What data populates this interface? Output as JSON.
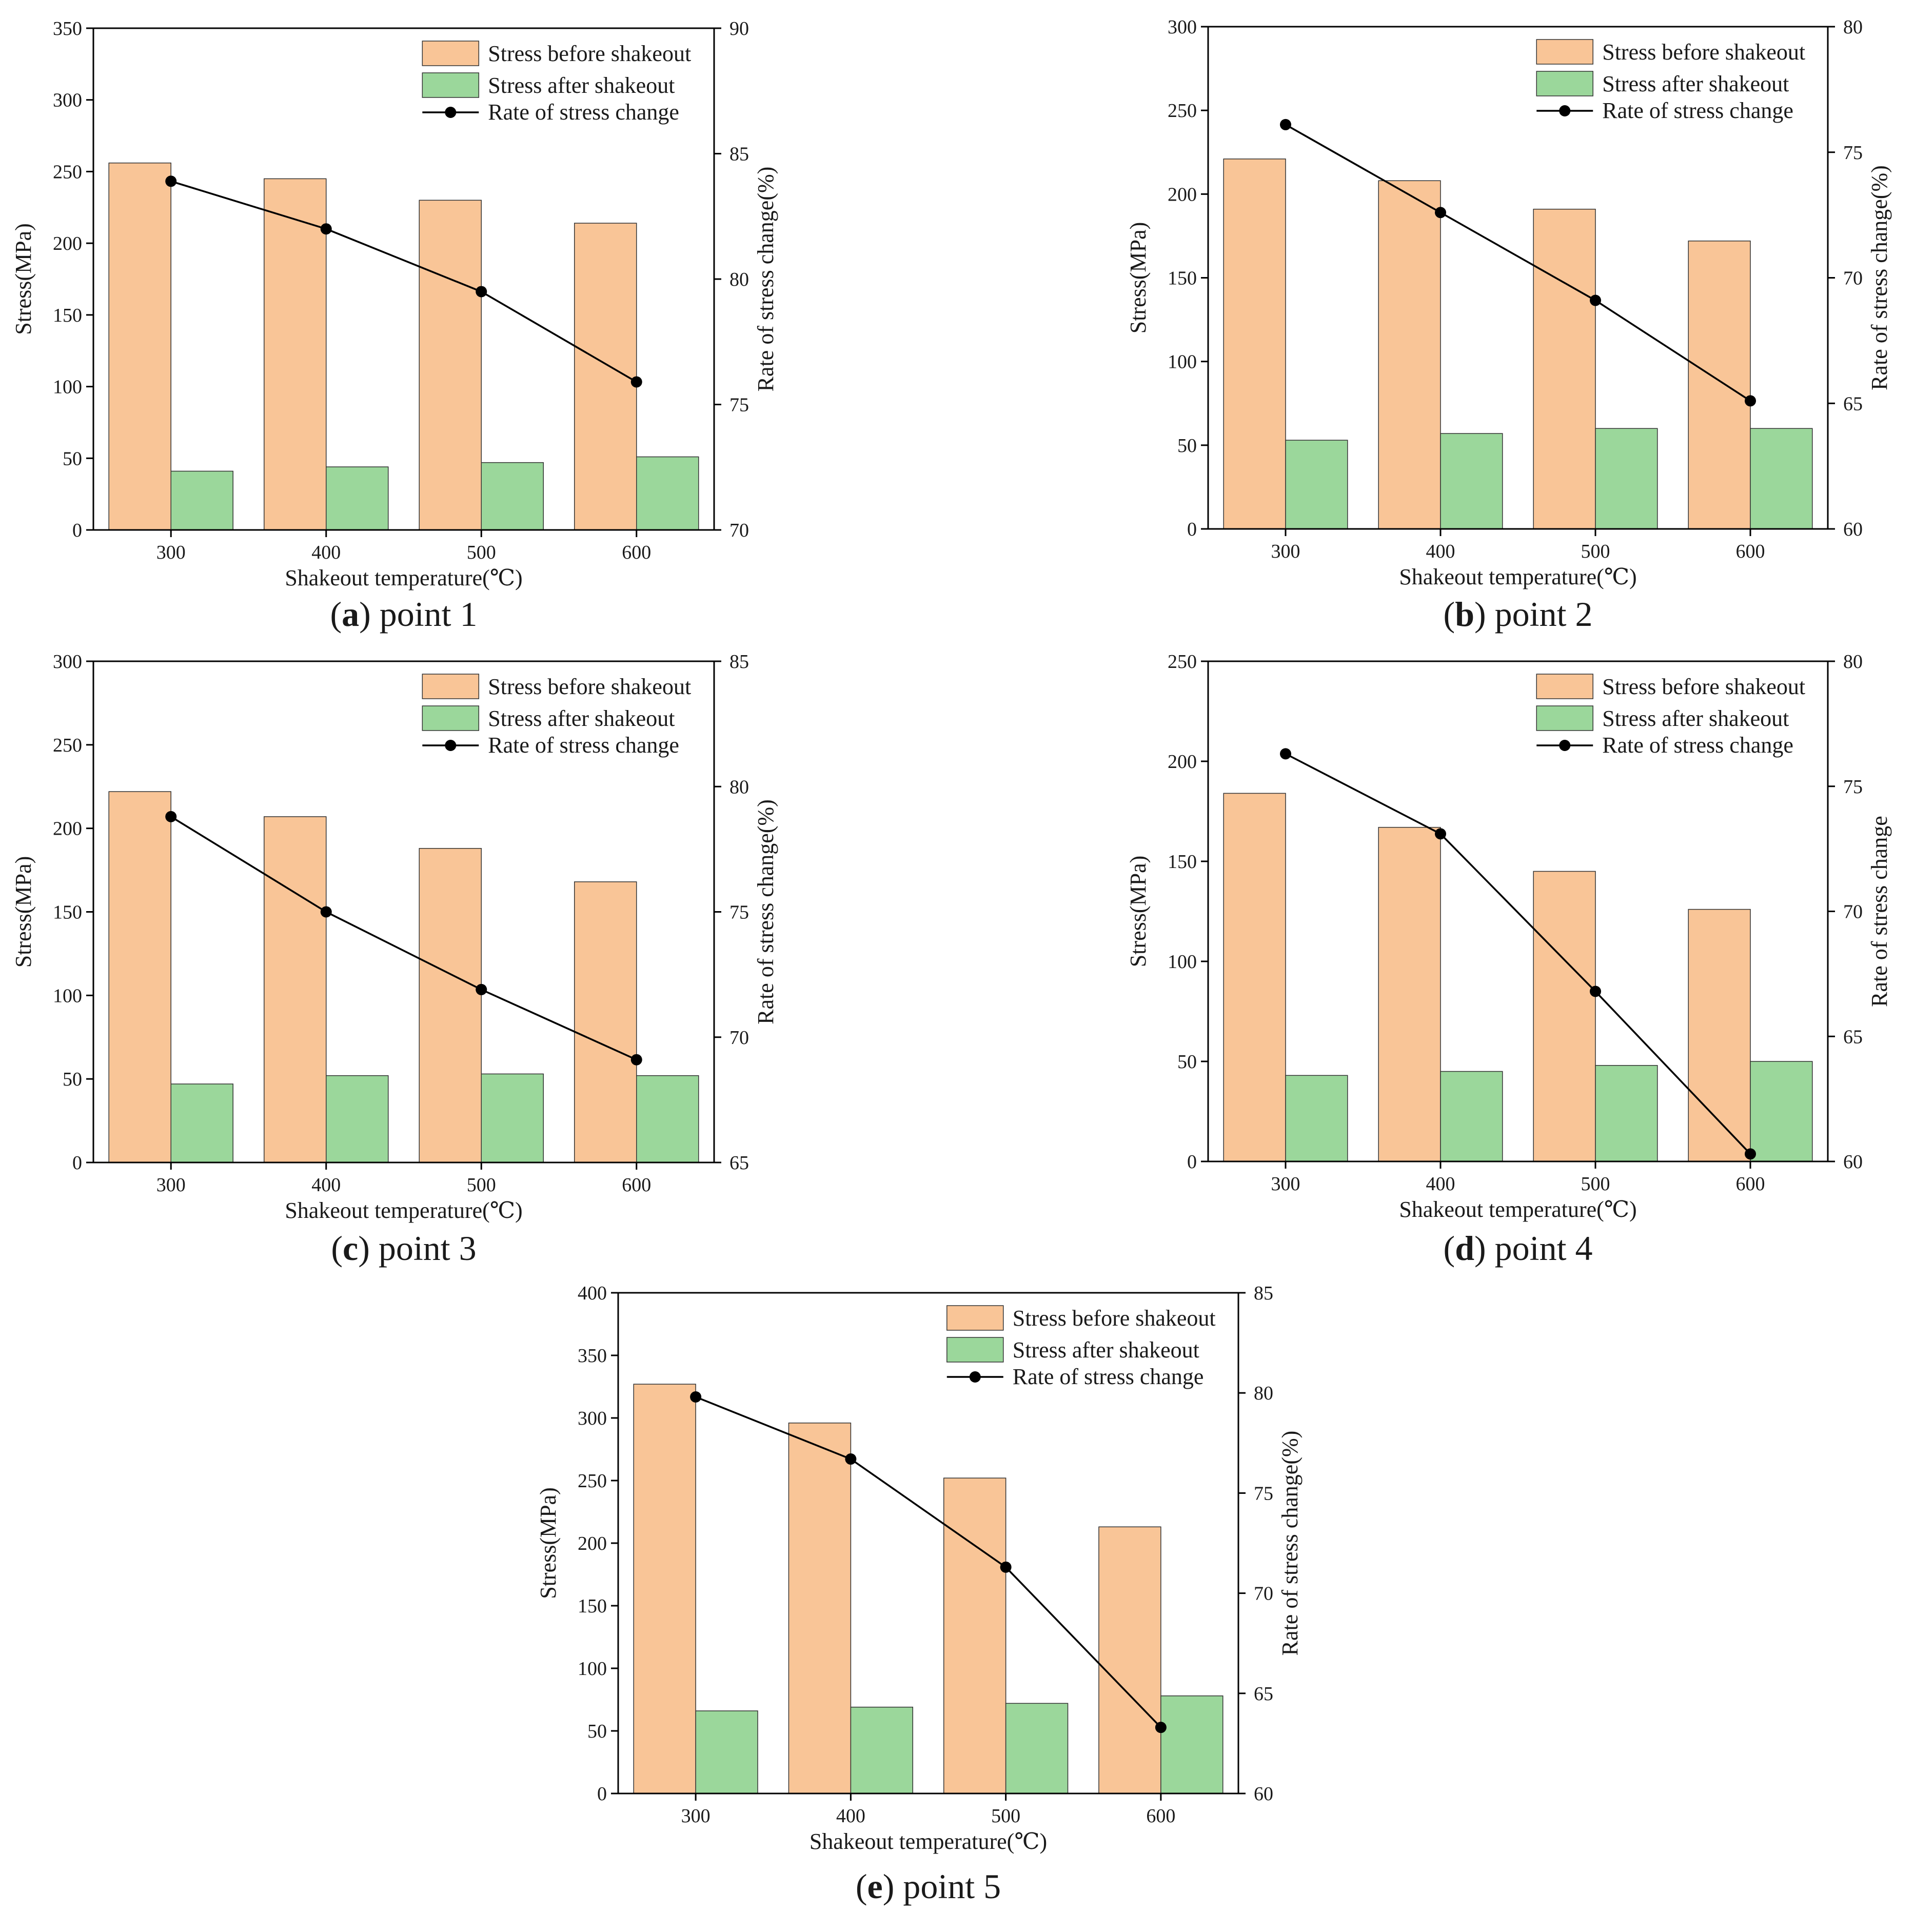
{
  "legend": {
    "before": "Stress before shakeout",
    "after": "Stress after shakeout",
    "rate": "Rate of stress change"
  },
  "colors": {
    "before": "#F9C597",
    "after": "#9BD79B",
    "line": "#000000",
    "axis": "#000000"
  },
  "chart_data": [
    {
      "type": "bar",
      "caption_letter": "a",
      "caption_rest": " point 1",
      "categories": [
        "300",
        "400",
        "500",
        "600"
      ],
      "xlabel": "Shakeout temperature(℃)",
      "ylabel": "Stress(MPa)",
      "y2label": "Rate of stress change(%)",
      "ylim": [
        0,
        350
      ],
      "yticks": [
        0,
        50,
        100,
        150,
        200,
        250,
        300,
        350
      ],
      "y2lim": [
        70,
        90
      ],
      "y2ticks": [
        70,
        75,
        80,
        85,
        90
      ],
      "series": [
        {
          "name": "Stress before shakeout",
          "values": [
            256,
            245,
            230,
            214
          ]
        },
        {
          "name": "Stress after shakeout",
          "values": [
            41,
            44,
            47,
            51
          ]
        },
        {
          "name": "Rate of stress change",
          "axis": "right",
          "values": [
            83.9,
            82.0,
            79.5,
            75.9
          ]
        }
      ]
    },
    {
      "type": "bar",
      "caption_letter": "b",
      "caption_rest": " point 2",
      "categories": [
        "300",
        "400",
        "500",
        "600"
      ],
      "xlabel": "Shakeout temperature(℃)",
      "ylabel": "Stress(MPa)",
      "y2label": "Rate of stress change(%)",
      "ylim": [
        0,
        300
      ],
      "yticks": [
        0,
        50,
        100,
        150,
        200,
        250,
        300
      ],
      "y2lim": [
        60,
        80
      ],
      "y2ticks": [
        60,
        65,
        70,
        75,
        80
      ],
      "series": [
        {
          "name": "Stress before shakeout",
          "values": [
            221,
            208,
            191,
            172
          ]
        },
        {
          "name": "Stress after shakeout",
          "values": [
            53,
            57,
            60,
            60
          ]
        },
        {
          "name": "Rate of stress change",
          "axis": "right",
          "values": [
            76.1,
            72.6,
            69.1,
            65.1
          ]
        }
      ]
    },
    {
      "type": "bar",
      "caption_letter": "c",
      "caption_rest": " point 3",
      "categories": [
        "300",
        "400",
        "500",
        "600"
      ],
      "xlabel": "Shakeout temperature(℃)",
      "ylabel": "Stress(MPa)",
      "y2label": "Rate of stress change(%)",
      "ylim": [
        0,
        300
      ],
      "yticks": [
        0,
        50,
        100,
        150,
        200,
        250,
        300
      ],
      "y2lim": [
        65,
        85
      ],
      "y2ticks": [
        65,
        70,
        75,
        80,
        85
      ],
      "series": [
        {
          "name": "Stress before shakeout",
          "values": [
            222,
            207,
            188,
            168
          ]
        },
        {
          "name": "Stress after shakeout",
          "values": [
            47,
            52,
            53,
            52
          ]
        },
        {
          "name": "Rate of stress change",
          "axis": "right",
          "values": [
            78.8,
            75.0,
            71.9,
            69.1
          ]
        }
      ]
    },
    {
      "type": "bar",
      "caption_letter": "d",
      "caption_rest": " point 4",
      "categories": [
        "300",
        "400",
        "500",
        "600"
      ],
      "xlabel": "Shakeout temperature(℃)",
      "ylabel": "Stress(MPa)",
      "y2label": "Rate of stress change",
      "ylim": [
        0,
        250
      ],
      "yticks": [
        0,
        50,
        100,
        150,
        200,
        250
      ],
      "y2lim": [
        60,
        80
      ],
      "y2ticks": [
        60,
        65,
        70,
        75,
        80
      ],
      "series": [
        {
          "name": "Stress before shakeout",
          "values": [
            184,
            167,
            145,
            126
          ]
        },
        {
          "name": "Stress after shakeout",
          "values": [
            43,
            45,
            48,
            50
          ]
        },
        {
          "name": "Rate of stress change",
          "axis": "right",
          "values": [
            76.3,
            73.1,
            66.8,
            60.3
          ]
        }
      ]
    },
    {
      "type": "bar",
      "caption_letter": "e",
      "caption_rest": " point 5",
      "categories": [
        "300",
        "400",
        "500",
        "600"
      ],
      "xlabel": "Shakeout temperature(℃)",
      "ylabel": "Stress(MPa)",
      "y2label": "Rate of stress change(%)",
      "ylim": [
        0,
        400
      ],
      "yticks": [
        0,
        50,
        100,
        150,
        200,
        250,
        300,
        350,
        400
      ],
      "y2lim": [
        60,
        85
      ],
      "y2ticks": [
        60,
        65,
        70,
        75,
        80,
        85
      ],
      "series": [
        {
          "name": "Stress before shakeout",
          "values": [
            327,
            296,
            252,
            213
          ]
        },
        {
          "name": "Stress after shakeout",
          "values": [
            66,
            69,
            72,
            78
          ]
        },
        {
          "name": "Rate of stress change",
          "axis": "right",
          "values": [
            79.8,
            76.7,
            71.3,
            63.3
          ]
        }
      ]
    }
  ]
}
